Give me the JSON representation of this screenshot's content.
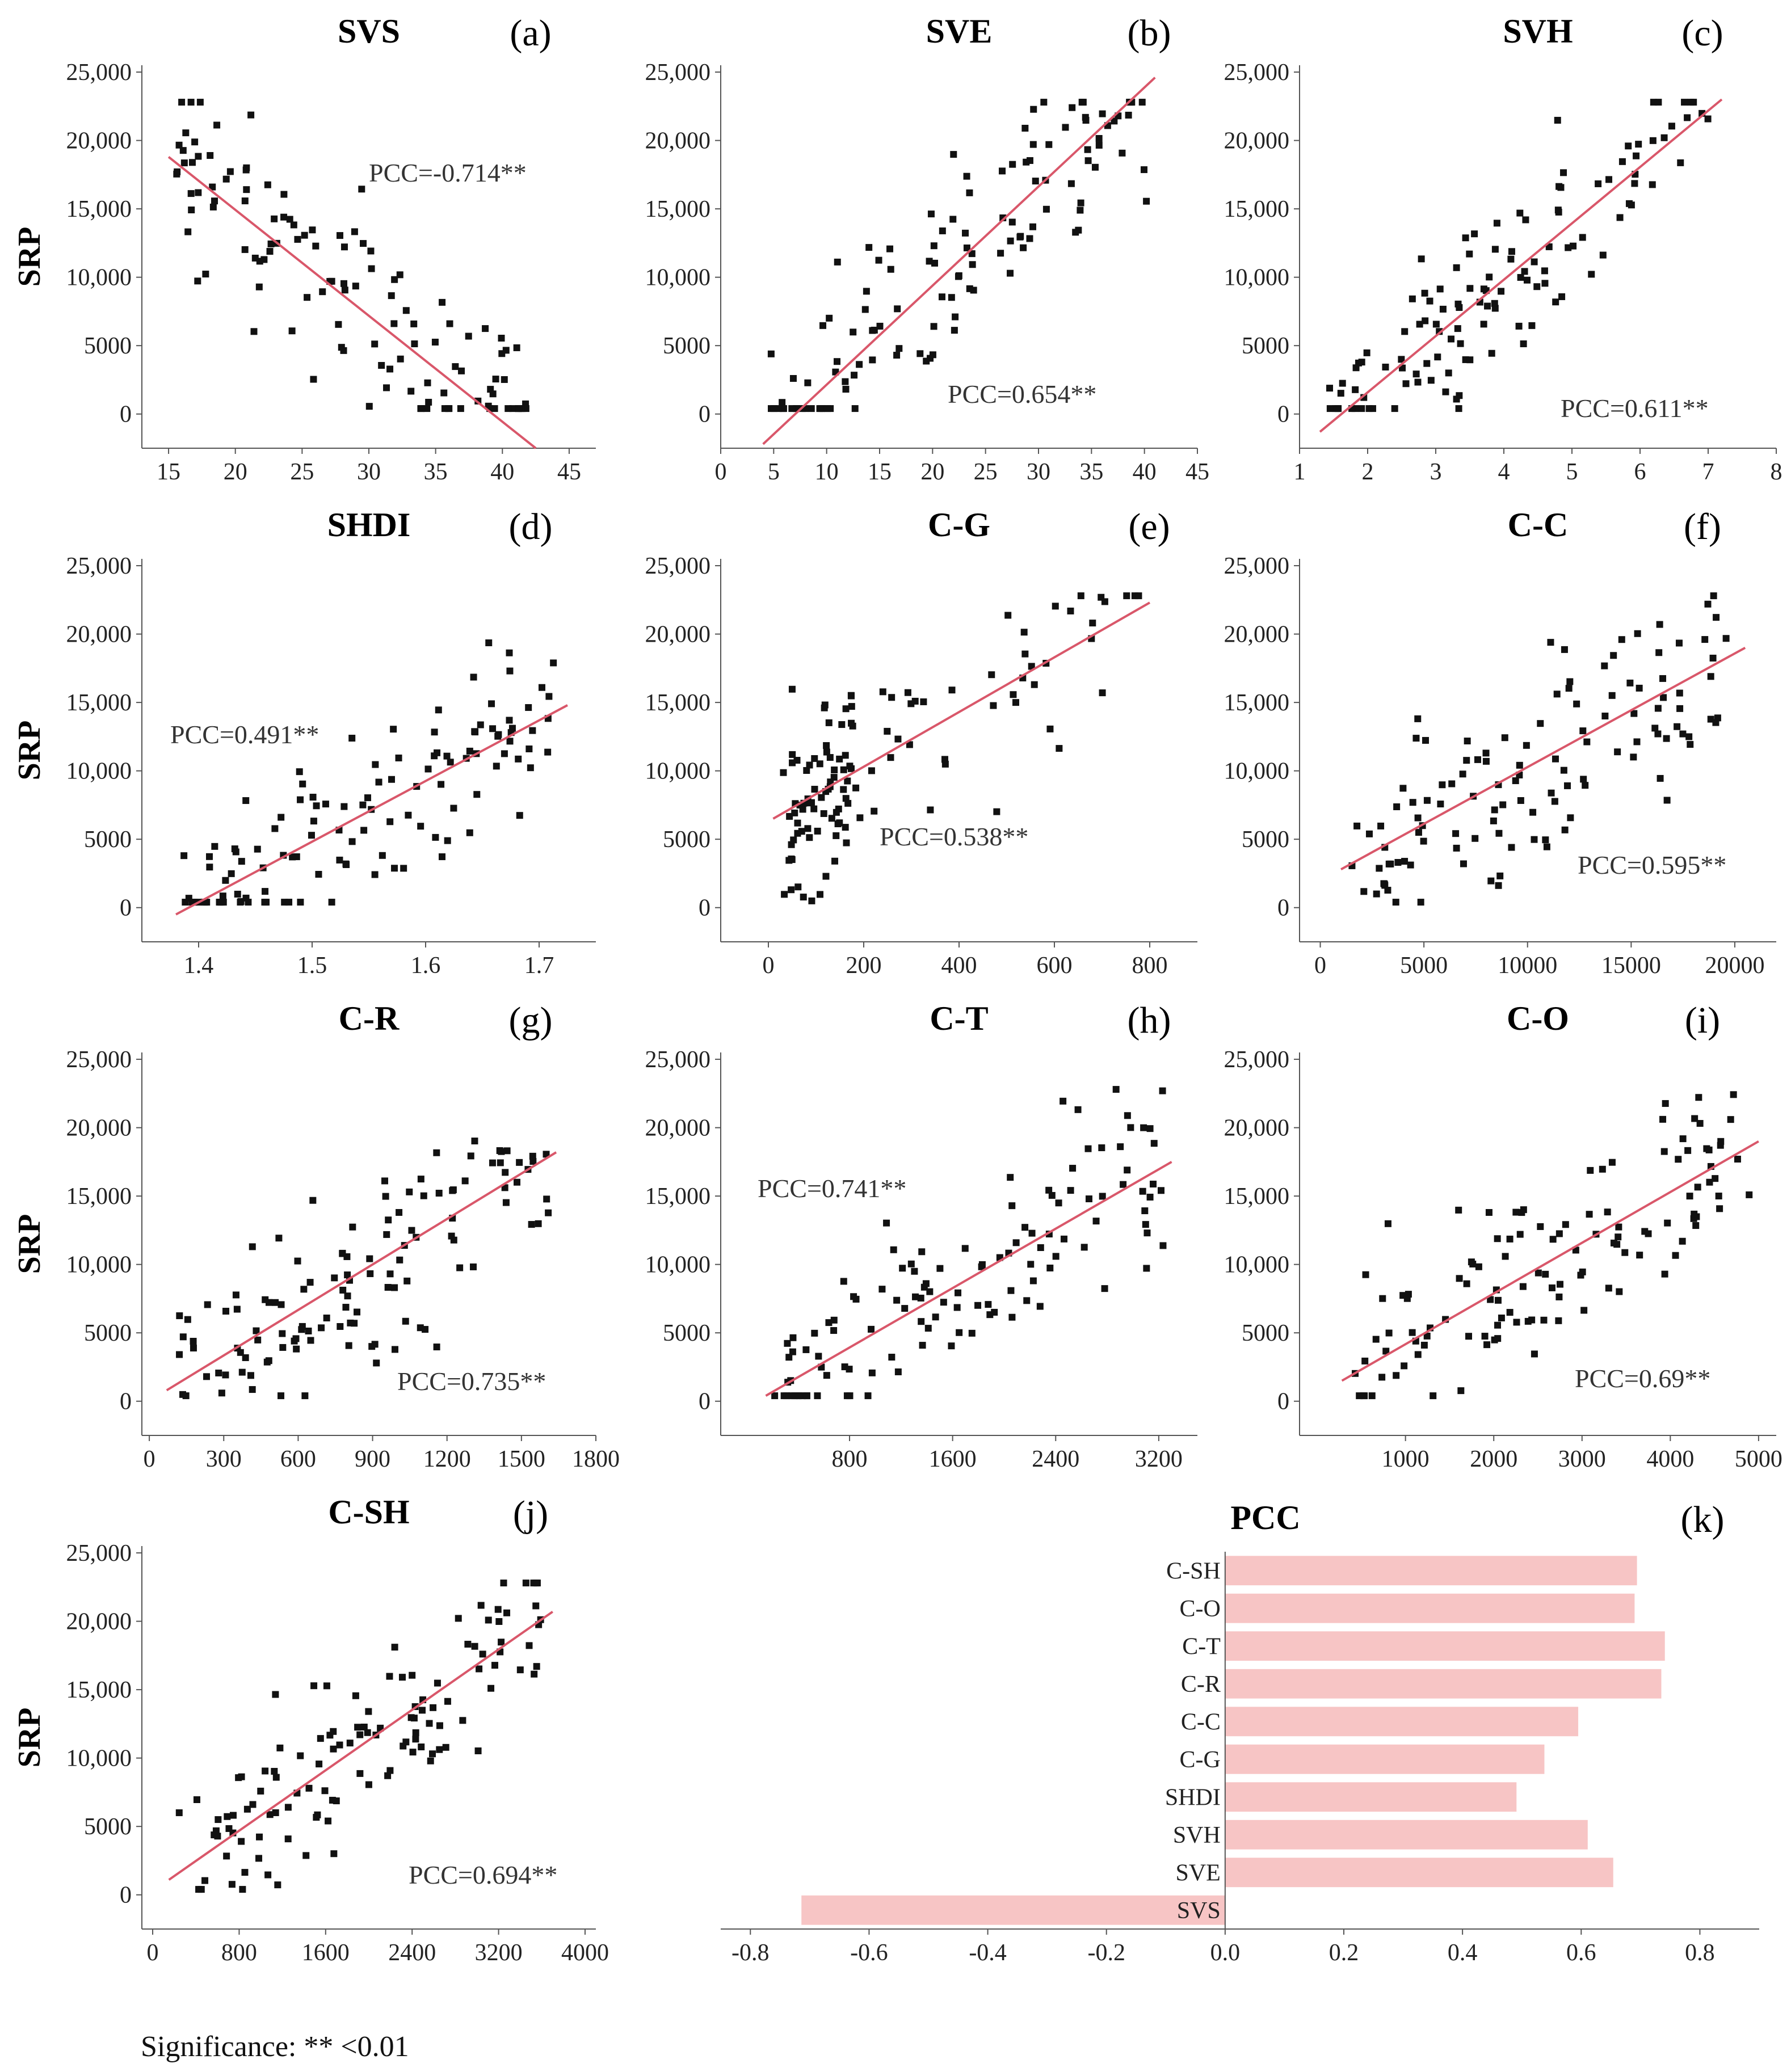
{
  "footnote": "Significance: ** <0.01",
  "chart_data": [
    {
      "id": "a",
      "type": "scatter",
      "title": "SVS",
      "tag": "(a)",
      "ylabel": "SRP",
      "pcc_label": "PCC=-0.714**",
      "pcc": -0.714,
      "xlim": [
        13,
        47
      ],
      "ylim": [
        -2500,
        25500
      ],
      "xticks": [
        15,
        20,
        25,
        30,
        35,
        40,
        45
      ],
      "yticks": [
        0,
        5000,
        10000,
        15000,
        20000,
        25000
      ],
      "ytick_labels": [
        "0",
        "5000",
        "10,000",
        "15,000",
        "20,000",
        "25,000"
      ],
      "fit": [
        [
          15,
          18800
        ],
        [
          42.5,
          -2500
        ]
      ]
    },
    {
      "id": "b",
      "type": "scatter",
      "title": "SVE",
      "tag": "(b)",
      "ylabel": "",
      "pcc_label": "PCC=0.654**",
      "pcc": 0.654,
      "xlim": [
        0,
        45
      ],
      "ylim": [
        -2500,
        25500
      ],
      "xticks": [
        0,
        5,
        10,
        15,
        20,
        25,
        30,
        35,
        40,
        45
      ],
      "yticks": [
        0,
        5000,
        10000,
        15000,
        20000,
        25000
      ],
      "ytick_labels": [
        "0",
        "5000",
        "10,000",
        "15,000",
        "20,000",
        "25,000"
      ],
      "fit": [
        [
          4,
          -2200
        ],
        [
          41,
          24600
        ]
      ]
    },
    {
      "id": "c",
      "type": "scatter",
      "title": "SVH",
      "tag": "(c)",
      "ylabel": "",
      "pcc_label": "PCC=0.611**",
      "pcc": 0.611,
      "xlim": [
        1,
        8
      ],
      "ylim": [
        -2500,
        25500
      ],
      "xticks": [
        1,
        2,
        3,
        4,
        5,
        6,
        7,
        8
      ],
      "yticks": [
        0,
        5000,
        10000,
        15000,
        20000,
        25000
      ],
      "ytick_labels": [
        "0",
        "5000",
        "10,000",
        "15,000",
        "20,000",
        "25,000"
      ],
      "fit": [
        [
          1.3,
          -1300
        ],
        [
          7.2,
          23000
        ]
      ]
    },
    {
      "id": "d",
      "type": "scatter",
      "title": "SHDI",
      "tag": "(d)",
      "ylabel": "SRP",
      "pcc_label": "PCC=0.491**",
      "pcc": 0.491,
      "xlim": [
        1.35,
        1.75
      ],
      "ylim": [
        -2500,
        25500
      ],
      "xticks": [
        1.4,
        1.5,
        1.6,
        1.7
      ],
      "yticks": [
        0,
        5000,
        10000,
        15000,
        20000,
        25000
      ],
      "ytick_labels": [
        "0",
        "5000",
        "10,000",
        "15,000",
        "20,000",
        "25,000"
      ],
      "fit": [
        [
          1.38,
          -500
        ],
        [
          1.725,
          14800
        ]
      ]
    },
    {
      "id": "e",
      "type": "scatter",
      "title": "C-G",
      "tag": "(e)",
      "ylabel": "",
      "pcc_label": "PCC=0.538**",
      "pcc": 0.538,
      "xlim": [
        -100,
        900
      ],
      "ylim": [
        -2500,
        25500
      ],
      "xticks": [
        0,
        200,
        400,
        600,
        800
      ],
      "yticks": [
        0,
        5000,
        10000,
        15000,
        20000,
        25000
      ],
      "ytick_labels": [
        "0",
        "5000",
        "10,000",
        "15,000",
        "20,000",
        "25,000"
      ],
      "fit": [
        [
          10,
          6500
        ],
        [
          800,
          22300
        ]
      ]
    },
    {
      "id": "f",
      "type": "scatter",
      "title": "C-C",
      "tag": "(f)",
      "ylabel": "",
      "pcc_label": "PCC=0.595**",
      "pcc": 0.595,
      "xlim": [
        -1000,
        22000
      ],
      "ylim": [
        -2500,
        25500
      ],
      "xticks": [
        0,
        5000,
        10000,
        15000,
        20000
      ],
      "yticks": [
        0,
        5000,
        10000,
        15000,
        20000,
        25000
      ],
      "ytick_labels": [
        "0",
        "5000",
        "10,000",
        "15,000",
        "20,000",
        "25,000"
      ],
      "fit": [
        [
          1000,
          2800
        ],
        [
          20500,
          19000
        ]
      ]
    },
    {
      "id": "g",
      "type": "scatter",
      "title": "C-R",
      "tag": "(g)",
      "ylabel": "SRP",
      "pcc_label": "PCC=0.735**",
      "pcc": 0.735,
      "xlim": [
        -30,
        1800
      ],
      "ylim": [
        -2500,
        25500
      ],
      "xticks": [
        0,
        300,
        600,
        900,
        1200,
        1500,
        1800
      ],
      "yticks": [
        0,
        5000,
        10000,
        15000,
        20000,
        25000
      ],
      "ytick_labels": [
        "0",
        "5000",
        "10,000",
        "15,000",
        "20,000",
        "25,000"
      ],
      "fit": [
        [
          70,
          800
        ],
        [
          1640,
          18200
        ]
      ]
    },
    {
      "id": "h",
      "type": "scatter",
      "title": "C-T",
      "tag": "(h)",
      "ylabel": "",
      "pcc_label": "PCC=0.741**",
      "pcc": 0.741,
      "xlim": [
        -200,
        3500
      ],
      "ylim": [
        -2500,
        25500
      ],
      "xticks": [
        800,
        1600,
        2400,
        3200
      ],
      "yticks": [
        0,
        5000,
        10000,
        15000,
        20000,
        25000
      ],
      "ytick_labels": [
        "0",
        "5000",
        "10,000",
        "15,000",
        "20,000",
        "25,000"
      ],
      "fit": [
        [
          150,
          400
        ],
        [
          3300,
          17500
        ]
      ]
    },
    {
      "id": "i",
      "type": "scatter",
      "title": "C-O",
      "tag": "(i)",
      "ylabel": "",
      "pcc_label": "PCC=0.69**",
      "pcc": 0.69,
      "xlim": [
        -200,
        5200
      ],
      "ylim": [
        -2500,
        25500
      ],
      "xticks": [
        1000,
        2000,
        3000,
        4000,
        5000
      ],
      "yticks": [
        0,
        5000,
        10000,
        15000,
        20000,
        25000
      ],
      "ytick_labels": [
        "0",
        "5000",
        "10,000",
        "15,000",
        "20,000",
        "25,000"
      ],
      "fit": [
        [
          280,
          1500
        ],
        [
          5000,
          19000
        ]
      ]
    },
    {
      "id": "j",
      "type": "scatter",
      "title": "C-SH",
      "tag": "(j)",
      "ylabel": "SRP",
      "pcc_label": "PCC=0.694**",
      "pcc": 0.694,
      "xlim": [
        -100,
        4100
      ],
      "ylim": [
        -2500,
        25500
      ],
      "xticks": [
        0,
        800,
        1600,
        2400,
        3200,
        4000
      ],
      "yticks": [
        0,
        5000,
        10000,
        15000,
        20000,
        25000
      ],
      "ytick_labels": [
        "0",
        "5000",
        "10,000",
        "15,000",
        "20,000",
        "25,000"
      ],
      "fit": [
        [
          150,
          1100
        ],
        [
          3700,
          20700
        ]
      ]
    },
    {
      "id": "k",
      "type": "bar",
      "orientation": "horizontal",
      "title": "PCC",
      "tag": "(k)",
      "categories": [
        "C-SH",
        "C-O",
        "C-T",
        "C-R",
        "C-C",
        "C-G",
        "SHDI",
        "SVH",
        "SVE",
        "SVS"
      ],
      "values": [
        0.694,
        0.69,
        0.741,
        0.735,
        0.595,
        0.538,
        0.491,
        0.611,
        0.654,
        -0.714
      ],
      "xlim": [
        -0.85,
        0.9
      ],
      "xticks": [
        -0.8,
        -0.6,
        -0.4,
        -0.2,
        0.0,
        0.2,
        0.4,
        0.6,
        0.8
      ],
      "xtick_labels": [
        "-0.8",
        "-0.6",
        "-0.4",
        "-0.2",
        "0.0",
        "0.2",
        "0.4",
        "0.6",
        "0.8"
      ],
      "color": "#f7c5c5"
    }
  ],
  "colors": {
    "fit_line": "#d9576a",
    "points": "#111111",
    "bars": "#f7c5c5",
    "axis": "#555555"
  }
}
